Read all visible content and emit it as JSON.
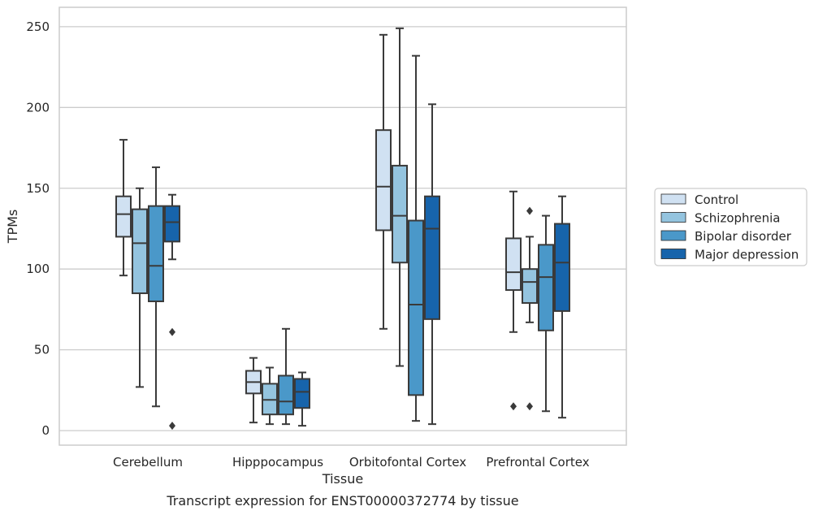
{
  "chart_data": {
    "type": "box",
    "xlabel": "Tissue",
    "ylabel": "TPMs",
    "caption": "Transcript expression for ENST00000372774 by tissue",
    "ylim": [
      -9,
      262
    ],
    "yticks": [
      0,
      50,
      100,
      150,
      200,
      250
    ],
    "grid": "horizontal",
    "legend_position": "right",
    "categories": [
      "Cerebellum",
      "Hipppocampus",
      "Orbitofontal Cortex",
      "Prefrontal Cortex"
    ],
    "series": [
      {
        "name": "Control",
        "color": "#d0e1f2",
        "boxes": [
          {
            "whisker_low": 96,
            "q1": 120,
            "median": 134,
            "q3": 145,
            "whisker_high": 180,
            "outliers": []
          },
          {
            "whisker_low": 5,
            "q1": 23,
            "median": 30,
            "q3": 37,
            "whisker_high": 45,
            "outliers": []
          },
          {
            "whisker_low": 63,
            "q1": 124,
            "median": 151,
            "q3": 186,
            "whisker_high": 245,
            "outliers": []
          },
          {
            "whisker_low": 61,
            "q1": 87,
            "median": 98,
            "q3": 119,
            "whisker_high": 148,
            "outliers": [
              15
            ]
          }
        ]
      },
      {
        "name": "Schizophrenia",
        "color": "#94c4df",
        "boxes": [
          {
            "whisker_low": 27,
            "q1": 85,
            "median": 116,
            "q3": 137,
            "whisker_high": 150,
            "outliers": []
          },
          {
            "whisker_low": 4,
            "q1": 10,
            "median": 19,
            "q3": 29,
            "whisker_high": 39,
            "outliers": []
          },
          {
            "whisker_low": 40,
            "q1": 104,
            "median": 133,
            "q3": 164,
            "whisker_high": 249,
            "outliers": []
          },
          {
            "whisker_low": 67,
            "q1": 79,
            "median": 92,
            "q3": 100,
            "whisker_high": 120,
            "outliers": [
              15,
              136
            ]
          }
        ]
      },
      {
        "name": "Bipolar disorder",
        "color": "#4a98c9",
        "boxes": [
          {
            "whisker_low": 15,
            "q1": 80,
            "median": 102,
            "q3": 139,
            "whisker_high": 163,
            "outliers": []
          },
          {
            "whisker_low": 4,
            "q1": 10,
            "median": 18,
            "q3": 34,
            "whisker_high": 63,
            "outliers": []
          },
          {
            "whisker_low": 6,
            "q1": 22,
            "median": 78,
            "q3": 130,
            "whisker_high": 232,
            "outliers": []
          },
          {
            "whisker_low": 12,
            "q1": 62,
            "median": 95,
            "q3": 115,
            "whisker_high": 133,
            "outliers": []
          }
        ]
      },
      {
        "name": "Major depression",
        "color": "#1764ab",
        "boxes": [
          {
            "whisker_low": 106,
            "q1": 117,
            "median": 129,
            "q3": 139,
            "whisker_high": 146,
            "outliers": [
              61,
              3
            ]
          },
          {
            "whisker_low": 3,
            "q1": 14,
            "median": 24,
            "q3": 32,
            "whisker_high": 36,
            "outliers": []
          },
          {
            "whisker_low": 4,
            "q1": 69,
            "median": 125,
            "q3": 145,
            "whisker_high": 202,
            "outliers": []
          },
          {
            "whisker_low": 8,
            "q1": 74,
            "median": 104,
            "q3": 128,
            "whisker_high": 145,
            "outliers": []
          }
        ]
      }
    ]
  }
}
